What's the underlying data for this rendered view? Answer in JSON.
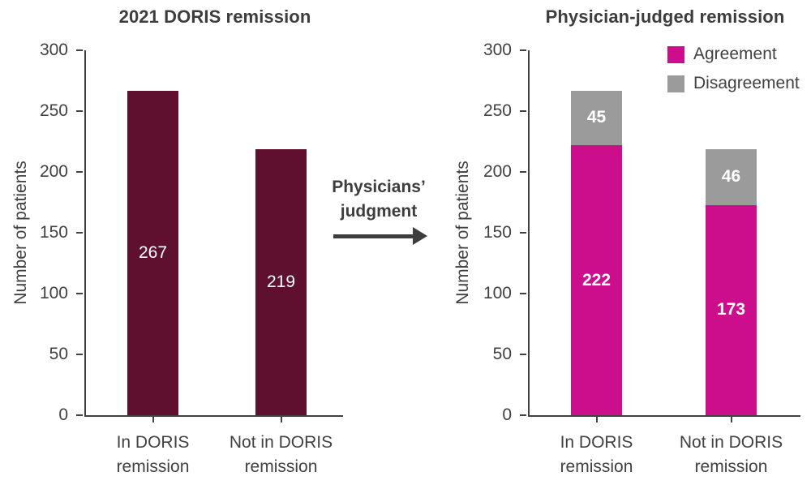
{
  "figure": {
    "annotation": {
      "line1": "Physicians’",
      "line2": "judgment"
    },
    "arrow_color": "#3d3d3d",
    "text_color": "#414141"
  },
  "chart_data": [
    {
      "type": "bar",
      "title": "2021 DORIS remission",
      "ylabel": "Number of patients",
      "ylim": [
        0,
        300
      ],
      "yticks": [
        0,
        50,
        100,
        150,
        200,
        250,
        300
      ],
      "grid": false,
      "categories": [
        [
          "In DORIS",
          "remission"
        ],
        [
          "Not in DORIS",
          "remission"
        ]
      ],
      "values": [
        267,
        219
      ],
      "bar_color": "#5f102f",
      "value_label_color": "#ffffff"
    },
    {
      "type": "bar",
      "stacked": true,
      "title": "Physician-judged remission",
      "ylabel": "Number of patients",
      "ylim": [
        0,
        300
      ],
      "yticks": [
        0,
        50,
        100,
        150,
        200,
        250,
        300
      ],
      "grid": false,
      "categories": [
        [
          "In DORIS",
          "remission"
        ],
        [
          "Not in DORIS",
          "remission"
        ]
      ],
      "series": [
        {
          "name": "Agreement",
          "values": [
            222,
            173
          ],
          "color": "#cc0e8d"
        },
        {
          "name": "Disagreement",
          "values": [
            45,
            46
          ],
          "color": "#9b9b9b"
        }
      ],
      "legend_position": "top-right",
      "value_label_color": "#ffffff"
    }
  ]
}
